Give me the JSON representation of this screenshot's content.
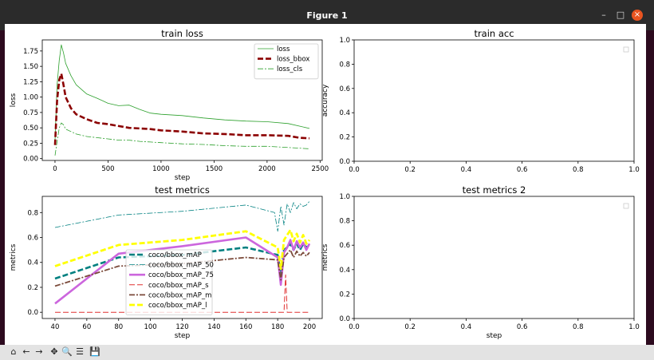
{
  "window": {
    "title": "Figure 1"
  },
  "window_controls": {
    "minimize": "–",
    "maximize": "□",
    "close": "×"
  },
  "toolbar": {
    "buttons": [
      {
        "name": "home-button",
        "glyph": "⌂"
      },
      {
        "name": "back-button",
        "glyph": "←"
      },
      {
        "name": "forward-button",
        "glyph": "→"
      },
      {
        "name": "pan-button",
        "glyph": "✥"
      },
      {
        "name": "zoom-button",
        "glyph": "🔍"
      },
      {
        "name": "configure-subplots-button",
        "glyph": "☰"
      },
      {
        "name": "save-button",
        "glyph": "💾"
      }
    ]
  },
  "chart_data": [
    {
      "type": "line",
      "title": "train loss",
      "xlabel": "step",
      "ylabel": "loss",
      "xlim": [
        -120,
        2520
      ],
      "ylim": [
        -0.03,
        1.93
      ],
      "xticks": [
        0,
        500,
        1000,
        1500,
        2000,
        2500
      ],
      "yticks": [
        0.0,
        0.25,
        0.5,
        0.75,
        1.0,
        1.25,
        1.5,
        1.75
      ],
      "xtick_labels": [
        "0",
        "500",
        "1000",
        "1500",
        "2000",
        "2500"
      ],
      "ytick_labels": [
        "0.00",
        "0.25",
        "0.50",
        "0.75",
        "1.00",
        "1.25",
        "1.50",
        "1.75"
      ],
      "legend": "top-right",
      "series": [
        {
          "name": "loss",
          "color": "#2ca02c",
          "style": "solid",
          "width": 0.8,
          "x": [
            0,
            20,
            40,
            60,
            80,
            100,
            150,
            200,
            300,
            400,
            500,
            600,
            700,
            800,
            900,
            1000,
            1200,
            1400,
            1600,
            1800,
            2000,
            2200,
            2400
          ],
          "y": [
            0.3,
            1.2,
            1.6,
            1.85,
            1.72,
            1.55,
            1.35,
            1.2,
            1.05,
            0.98,
            0.9,
            0.86,
            0.87,
            0.8,
            0.74,
            0.72,
            0.7,
            0.66,
            0.63,
            0.61,
            0.6,
            0.57,
            0.49
          ]
        },
        {
          "name": "loss_bbox",
          "color": "#8b0000",
          "style": "dashed",
          "width": 2.6,
          "x": [
            0,
            20,
            40,
            60,
            80,
            100,
            150,
            200,
            300,
            400,
            500,
            600,
            700,
            800,
            900,
            1000,
            1200,
            1400,
            1600,
            1800,
            2000,
            2200,
            2300,
            2400
          ],
          "y": [
            0.22,
            0.95,
            1.28,
            1.38,
            1.2,
            1.0,
            0.82,
            0.72,
            0.64,
            0.58,
            0.56,
            0.53,
            0.5,
            0.49,
            0.48,
            0.46,
            0.44,
            0.41,
            0.4,
            0.38,
            0.38,
            0.37,
            0.34,
            0.33
          ]
        },
        {
          "name": "loss_cls",
          "color": "#2ca02c",
          "style": "dashdot",
          "width": 0.8,
          "x": [
            0,
            20,
            40,
            60,
            80,
            100,
            150,
            200,
            300,
            400,
            500,
            600,
            700,
            800,
            900,
            1000,
            1200,
            1400,
            1600,
            1800,
            2000,
            2200,
            2400
          ],
          "y": [
            0.05,
            0.28,
            0.5,
            0.58,
            0.55,
            0.48,
            0.44,
            0.4,
            0.36,
            0.34,
            0.32,
            0.3,
            0.3,
            0.28,
            0.27,
            0.26,
            0.24,
            0.23,
            0.21,
            0.2,
            0.2,
            0.18,
            0.16
          ]
        }
      ]
    },
    {
      "type": "line",
      "title": "train acc",
      "xlabel": "",
      "ylabel": "accuracy",
      "xlim": [
        0.0,
        1.0
      ],
      "ylim": [
        0.0,
        1.0
      ],
      "xticks": [
        0.0,
        0.2,
        0.4,
        0.6,
        0.8,
        1.0
      ],
      "yticks": [
        0.0,
        0.2,
        0.4,
        0.6,
        0.8,
        1.0
      ],
      "xtick_labels": [
        "0.0",
        "0.2",
        "0.4",
        "0.6",
        "0.8",
        "1.0"
      ],
      "ytick_labels": [
        "0.0",
        "0.2",
        "0.4",
        "0.6",
        "0.8",
        "1.0"
      ],
      "legend": "top-right",
      "series": []
    },
    {
      "type": "line",
      "title": "test metrics",
      "xlabel": "step",
      "ylabel": "metrics",
      "xlim": [
        32,
        208
      ],
      "ylim": [
        -0.05,
        0.93
      ],
      "xticks": [
        40,
        60,
        80,
        100,
        120,
        140,
        160,
        180,
        200
      ],
      "yticks": [
        0.0,
        0.2,
        0.4,
        0.6,
        0.8
      ],
      "xtick_labels": [
        "40",
        "60",
        "80",
        "100",
        "120",
        "140",
        "160",
        "180",
        "200"
      ],
      "ytick_labels": [
        "0.0",
        "0.2",
        "0.4",
        "0.6",
        "0.8"
      ],
      "legend": "lower-center",
      "series": [
        {
          "name": "coco/bbox_mAP",
          "color": "#008080",
          "style": "dashed",
          "width": 2.6,
          "x": [
            40,
            80,
            120,
            160,
            180,
            182,
            184,
            186,
            188,
            190,
            192,
            194,
            196,
            198,
            200
          ],
          "y": [
            0.27,
            0.44,
            0.46,
            0.52,
            0.46,
            0.3,
            0.5,
            0.52,
            0.55,
            0.5,
            0.55,
            0.5,
            0.55,
            0.52,
            0.54
          ]
        },
        {
          "name": "coco/bbox_mAP_50",
          "color": "#008080",
          "style": "dashdot",
          "width": 0.8,
          "x": [
            40,
            80,
            120,
            160,
            178,
            180,
            182,
            184,
            186,
            188,
            190,
            192,
            194,
            196,
            198,
            200
          ],
          "y": [
            0.68,
            0.78,
            0.81,
            0.86,
            0.8,
            0.65,
            0.85,
            0.7,
            0.87,
            0.8,
            0.88,
            0.83,
            0.87,
            0.85,
            0.86,
            0.89
          ]
        },
        {
          "name": "coco/bbox_mAP_75",
          "color": "#cc66dd",
          "style": "solid",
          "width": 2.6,
          "x": [
            40,
            80,
            120,
            160,
            180,
            182,
            184,
            186,
            188,
            190,
            192,
            194,
            196,
            198,
            200
          ],
          "y": [
            0.07,
            0.47,
            0.53,
            0.6,
            0.44,
            0.22,
            0.48,
            0.52,
            0.58,
            0.5,
            0.57,
            0.52,
            0.56,
            0.5,
            0.55
          ]
        },
        {
          "name": "coco/bbox_mAP_s",
          "color": "#e03030",
          "style": "dashed",
          "width": 1.0,
          "x": [
            40,
            80,
            120,
            160,
            182,
            184,
            185,
            186,
            188,
            200
          ],
          "y": [
            0.0,
            0.0,
            0.0,
            0.0,
            0.0,
            0.0,
            0.3,
            0.0,
            0.0,
            0.0
          ]
        },
        {
          "name": "coco/bbox_mAP_m",
          "color": "#7b4a3a",
          "style": "dashdot",
          "width": 1.8,
          "x": [
            40,
            80,
            120,
            160,
            180,
            182,
            184,
            186,
            188,
            190,
            192,
            194,
            196,
            198,
            200
          ],
          "y": [
            0.21,
            0.37,
            0.39,
            0.44,
            0.42,
            0.26,
            0.44,
            0.47,
            0.5,
            0.44,
            0.49,
            0.45,
            0.48,
            0.45,
            0.48
          ]
        },
        {
          "name": "coco/bbox_mAP_l",
          "color": "#ffff00",
          "style": "dashed",
          "width": 2.8,
          "x": [
            40,
            80,
            120,
            160,
            180,
            182,
            184,
            186,
            188,
            190,
            192,
            194,
            196,
            198,
            200
          ],
          "y": [
            0.37,
            0.54,
            0.58,
            0.65,
            0.52,
            0.35,
            0.58,
            0.62,
            0.66,
            0.57,
            0.63,
            0.56,
            0.62,
            0.55,
            0.58
          ]
        }
      ]
    },
    {
      "type": "line",
      "title": "test metrics 2",
      "xlabel": "step",
      "ylabel": "metrics",
      "xlim": [
        0.0,
        1.0
      ],
      "ylim": [
        0.0,
        1.0
      ],
      "xticks": [
        0.0,
        0.2,
        0.4,
        0.6,
        0.8,
        1.0
      ],
      "yticks": [
        0.0,
        0.2,
        0.4,
        0.6,
        0.8,
        1.0
      ],
      "xtick_labels": [
        "0.0",
        "0.2",
        "0.4",
        "0.6",
        "0.8",
        "1.0"
      ],
      "ytick_labels": [
        "0.0",
        "0.2",
        "0.4",
        "0.6",
        "0.8",
        "1.0"
      ],
      "legend": "top-right",
      "series": []
    }
  ]
}
